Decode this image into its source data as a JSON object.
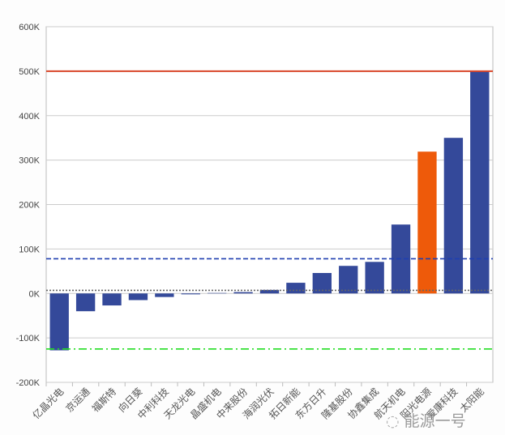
{
  "chart_data": {
    "type": "bar",
    "title": "",
    "xlabel": "",
    "ylabel": "",
    "ylim": [
      -200000,
      600000
    ],
    "yticks": [
      -200000,
      -100000,
      0,
      100000,
      200000,
      300000,
      400000,
      500000,
      600000
    ],
    "ytick_labels": [
      "-200K",
      "-100K",
      "0K",
      "100K",
      "200K",
      "300K",
      "400K",
      "500K",
      "600K"
    ],
    "categories": [
      "亿晶光电",
      "京运通",
      "福斯特",
      "向日葵",
      "中利科技",
      "天龙光电",
      "晶盛机电",
      "中来股份",
      "海润光伏",
      "拓日新能",
      "东方日升",
      "隆基股份",
      "协鑫集成",
      "航天机电",
      "阳光电源",
      "爱康科技",
      "太阳能"
    ],
    "values": [
      -128000,
      -40000,
      -27000,
      -15000,
      -8000,
      -2000,
      1000,
      3000,
      8000,
      24000,
      46000,
      62000,
      71000,
      155000,
      319000,
      350000,
      500000
    ],
    "highlight_index": 14,
    "colors": {
      "bar": "#34499a",
      "highlight": "#ee5a0a"
    },
    "reference_lines": [
      {
        "value": 500000,
        "style": "solid",
        "color": "#d9472b"
      },
      {
        "value": 78000,
        "style": "dashed",
        "color": "#1f3fb0"
      },
      {
        "value": 7000,
        "style": "dotted",
        "color": "#666666"
      },
      {
        "value": -125000,
        "style": "dashdot",
        "color": "#22dd22"
      }
    ],
    "grid": true
  },
  "watermark": "能源一号"
}
